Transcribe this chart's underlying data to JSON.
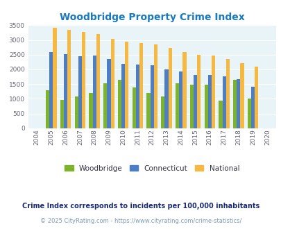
{
  "title": "Woodbridge Property Crime Index",
  "years": [
    "2004",
    "2005",
    "2006",
    "2007",
    "2008",
    "2009",
    "2010",
    "2011",
    "2012",
    "2013",
    "2014",
    "2015",
    "2016",
    "2017",
    "2018",
    "2019",
    "2020"
  ],
  "woodbridge": [
    0,
    1300,
    960,
    1090,
    1190,
    1530,
    1650,
    1390,
    1190,
    1090,
    1530,
    1490,
    1480,
    930,
    1650,
    1010,
    0
  ],
  "connecticut": [
    0,
    2590,
    2510,
    2440,
    2480,
    2360,
    2190,
    2160,
    2140,
    2000,
    1920,
    1810,
    1800,
    1760,
    1670,
    1410,
    0
  ],
  "national": [
    0,
    3420,
    3340,
    3260,
    3210,
    3040,
    2950,
    2900,
    2850,
    2720,
    2590,
    2490,
    2460,
    2360,
    2200,
    2100,
    0
  ],
  "woodbridge_color": "#7db32a",
  "connecticut_color": "#4d7ec5",
  "national_color": "#f5b942",
  "plot_bg": "#e8f4f8",
  "ylim": [
    0,
    3500
  ],
  "yticks": [
    0,
    500,
    1000,
    1500,
    2000,
    2500,
    3000,
    3500
  ],
  "subtitle": "Crime Index corresponds to incidents per 100,000 inhabitants",
  "footer": "© 2025 CityRating.com - https://www.cityrating.com/crime-statistics/",
  "title_color": "#1a7abf",
  "subtitle_color": "#1a2a6e",
  "footer_color": "#7a9ab8"
}
